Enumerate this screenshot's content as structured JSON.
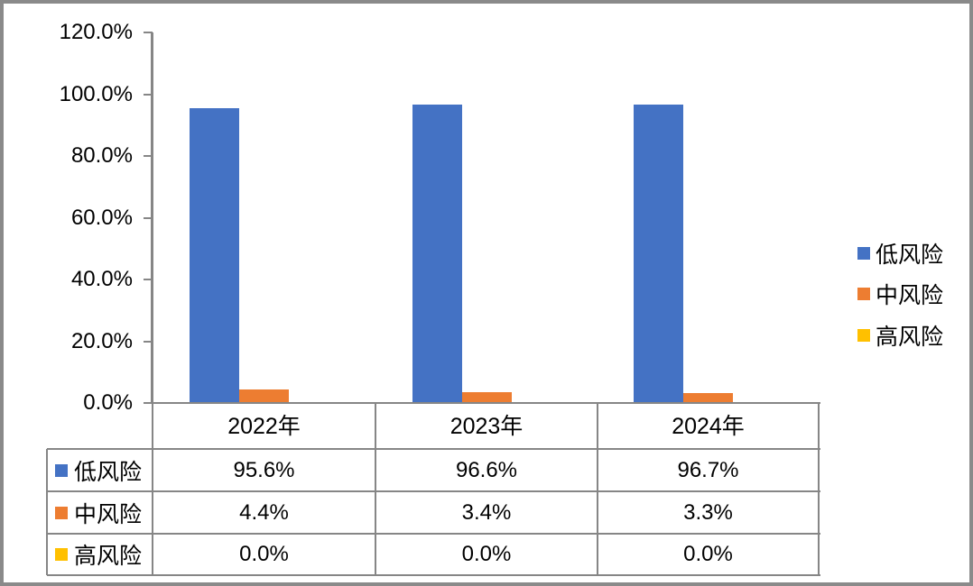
{
  "chart_data": {
    "type": "bar",
    "title": "",
    "xlabel": "",
    "ylabel": "",
    "categories": [
      "2022年",
      "2023年",
      "2024年"
    ],
    "series": [
      {
        "name": "低风险",
        "color": "#4472C4",
        "values": [
          95.6,
          96.6,
          96.7
        ],
        "labels": [
          "95.6%",
          "96.6%",
          "96.7%"
        ]
      },
      {
        "name": "中风险",
        "color": "#ED7D31",
        "values": [
          4.4,
          3.4,
          3.3
        ],
        "labels": [
          "4.4%",
          "3.4%",
          "3.3%"
        ]
      },
      {
        "name": "高风险",
        "color": "#FFC000",
        "values": [
          0.0,
          0.0,
          0.0
        ],
        "labels": [
          "0.0%",
          "0.0%",
          "0.0%"
        ]
      }
    ],
    "y_ticks": [
      {
        "value": 0,
        "label": "0.0%"
      },
      {
        "value": 20,
        "label": "20.0%"
      },
      {
        "value": 40,
        "label": "40.0%"
      },
      {
        "value": 60,
        "label": "60.0%"
      },
      {
        "value": 80,
        "label": "80.0%"
      },
      {
        "value": 100,
        "label": "100.0%"
      },
      {
        "value": 120,
        "label": "120.0%"
      }
    ],
    "ylim": [
      0,
      120
    ],
    "grid": false,
    "legend_position": "right",
    "show_data_table": true
  },
  "colors": {
    "background": "#ffffff",
    "frame_border": "#8a8a8a",
    "axis_and_table_lines": "#868686",
    "text": "#000000",
    "series_low": "#4472C4",
    "series_mid": "#ED7D31",
    "series_high": "#FFC000"
  }
}
